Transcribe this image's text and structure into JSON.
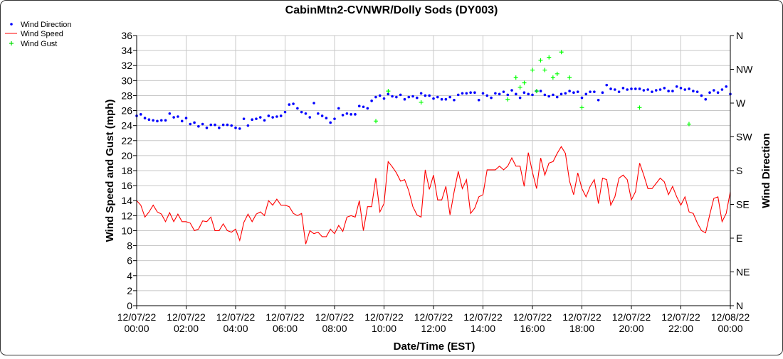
{
  "chart_data": {
    "type": "line",
    "title": "CabinMtn2-CVNWR/Dolly Sods (DY003)",
    "xlabel": "Date/Time (EST)",
    "ylabel": "Wind Speed and Gust (mph)",
    "y2label": "Wind Direction",
    "ylim": [
      0,
      36
    ],
    "y2lim": [
      0,
      360
    ],
    "xlim_hours": [
      0,
      24
    ],
    "grid": true,
    "legend_position": "top-left",
    "y_ticks": [
      "0",
      "2",
      "4",
      "6",
      "8",
      "10",
      "12",
      "14",
      "16",
      "18",
      "20",
      "22",
      "24",
      "26",
      "28",
      "30",
      "32",
      "34",
      "36"
    ],
    "y2_ticks": [
      "N",
      "NE",
      "E",
      "SE",
      "S",
      "SW",
      "W",
      "NW",
      "N"
    ],
    "x_ticks": [
      {
        "date": "12/07/22",
        "time": "00:00"
      },
      {
        "date": "12/07/22",
        "time": "02:00"
      },
      {
        "date": "12/07/22",
        "time": "04:00"
      },
      {
        "date": "12/07/22",
        "time": "06:00"
      },
      {
        "date": "12/07/22",
        "time": "08:00"
      },
      {
        "date": "12/07/22",
        "time": "10:00"
      },
      {
        "date": "12/07/22",
        "time": "12:00"
      },
      {
        "date": "12/07/22",
        "time": "14:00"
      },
      {
        "date": "12/07/22",
        "time": "16:00"
      },
      {
        "date": "12/07/22",
        "time": "18:00"
      },
      {
        "date": "12/07/22",
        "time": "20:00"
      },
      {
        "date": "12/07/22",
        "time": "22:00"
      },
      {
        "date": "12/08/22",
        "time": "00:00"
      }
    ],
    "interval_minutes": 10,
    "series": [
      {
        "name": "Wind Direction",
        "type": "scatter",
        "color": "#0000ff",
        "unit": "deg",
        "values": [
          253,
          255,
          250,
          248,
          247,
          246,
          247,
          247,
          256,
          251,
          252,
          246,
          250,
          242,
          244,
          239,
          242,
          237,
          241,
          241,
          237,
          241,
          241,
          240,
          237,
          236,
          249,
          240,
          248,
          249,
          251,
          247,
          253,
          251,
          252,
          253,
          258,
          268,
          269,
          263,
          258,
          256,
          251,
          270,
          256,
          253,
          250,
          244,
          249,
          263,
          254,
          256,
          255,
          255,
          266,
          265,
          263,
          273,
          278,
          280,
          276,
          282,
          279,
          278,
          281,
          275,
          278,
          279,
          277,
          283,
          280,
          280,
          276,
          278,
          275,
          275,
          278,
          274,
          281,
          283,
          283,
          284,
          284,
          274,
          283,
          280,
          277,
          283,
          282,
          285,
          281,
          287,
          282,
          277,
          284,
          282,
          281,
          286,
          286,
          281,
          279,
          281,
          278,
          282,
          283,
          286,
          284,
          285,
          277,
          282,
          285,
          285,
          274,
          284,
          294,
          289,
          288,
          285,
          290,
          288,
          289,
          289,
          289,
          287,
          288,
          285,
          287,
          288,
          290,
          286,
          286,
          292,
          290,
          288,
          289,
          286,
          285,
          280,
          275,
          284,
          287,
          284,
          288,
          292,
          282
        ]
      },
      {
        "name": "Wind Speed",
        "type": "line",
        "color": "#ff0000",
        "unit": "mph",
        "values": [
          14.0,
          13.4,
          11.8,
          12.5,
          13.4,
          12.5,
          12.2,
          11.2,
          12.4,
          11.2,
          12.2,
          11.2,
          11.2,
          11.0,
          10.0,
          10.2,
          11.3,
          11.2,
          11.8,
          10.0,
          10.0,
          10.9,
          10.0,
          9.8,
          10.2,
          8.7,
          11.1,
          12.2,
          11.2,
          12.2,
          12.5,
          12.0,
          14.0,
          13.4,
          14.2,
          13.4,
          13.4,
          13.2,
          12.3,
          12.0,
          12.3,
          8.2,
          10.0,
          9.6,
          9.8,
          9.2,
          9.2,
          10.2,
          9.6,
          10.7,
          9.9,
          11.8,
          12.0,
          11.8,
          14.0,
          10.0,
          13.2,
          13.2,
          17.0,
          12.5,
          13.6,
          19.2,
          18.5,
          17.7,
          16.6,
          16.8,
          15.3,
          13.2,
          12.1,
          11.8,
          18.1,
          15.5,
          17.4,
          14.1,
          14.1,
          15.9,
          12.1,
          15.2,
          17.9,
          15.6,
          16.8,
          12.3,
          13.0,
          14.5,
          14.8,
          18.1,
          18.1,
          18.1,
          18.6,
          18.1,
          18.6,
          19.7,
          18.6,
          18.6,
          15.9,
          20.4,
          17.8,
          15.6,
          19.7,
          17.4,
          19.0,
          19.2,
          20.3,
          21.2,
          20.3,
          16.6,
          14.8,
          17.7,
          15.6,
          14.5,
          15.9,
          16.8,
          13.6,
          17.0,
          16.8,
          13.4,
          14.5,
          17.0,
          17.4,
          16.8,
          14.1,
          15.2,
          19.0,
          17.4,
          15.6,
          15.6,
          16.3,
          17.0,
          16.5,
          14.8,
          15.9,
          14.5,
          13.4,
          14.5,
          12.5,
          12.3,
          11.0,
          10.0,
          9.7,
          12.1,
          14.3,
          14.5,
          11.2,
          12.3,
          15.2
        ]
      },
      {
        "name": "Wind Gust",
        "type": "scatter",
        "color": "#00ff00",
        "unit": "mph",
        "points": [
          [
            9.67,
            24.6
          ],
          [
            10.17,
            28.6
          ],
          [
            11.5,
            27.1
          ],
          [
            15.0,
            27.5
          ],
          [
            15.33,
            30.4
          ],
          [
            15.5,
            29.1
          ],
          [
            15.67,
            29.7
          ],
          [
            16.0,
            31.4
          ],
          [
            16.17,
            28.6
          ],
          [
            16.33,
            32.7
          ],
          [
            16.5,
            31.4
          ],
          [
            16.67,
            33.1
          ],
          [
            16.83,
            30.4
          ],
          [
            17.0,
            30.9
          ],
          [
            17.17,
            33.8
          ],
          [
            17.5,
            30.4
          ],
          [
            18.0,
            26.4
          ],
          [
            20.33,
            26.4
          ],
          [
            22.33,
            24.2
          ]
        ]
      }
    ]
  }
}
